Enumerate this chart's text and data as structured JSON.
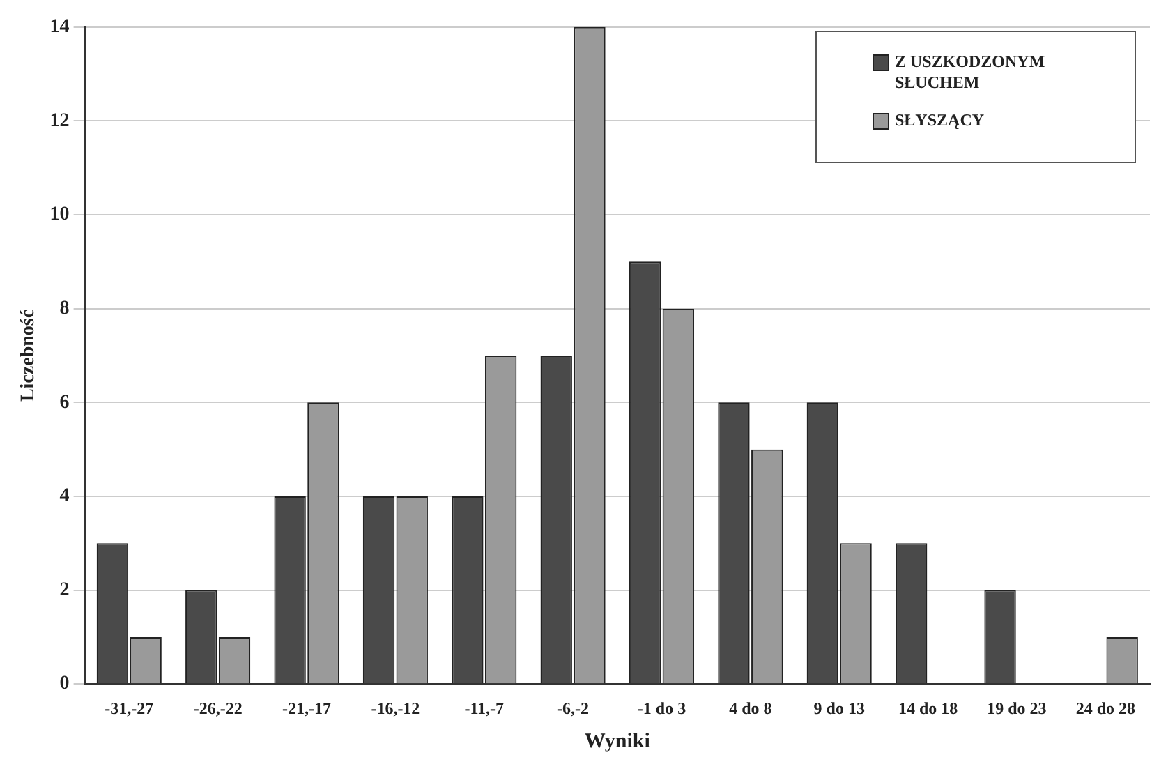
{
  "chart_data": {
    "type": "bar",
    "xlabel": "Wyniki",
    "ylabel": "Liczebność",
    "categories": [
      "-31,-27",
      "-26,-22",
      "-21,-17",
      "-16,-12",
      "-11,-7",
      "-6,-2",
      "-1 do 3",
      "4 do 8",
      "9 do 13",
      "14 do 18",
      "19 do 23",
      "24 do 28"
    ],
    "series": [
      {
        "name": "Z USZKODZONYM SŁUCHEM",
        "color": "#4a4a4a",
        "values": [
          3,
          2,
          4,
          4,
          4,
          7,
          9,
          6,
          6,
          3,
          2,
          0
        ]
      },
      {
        "name": "SŁYSZĄCY",
        "color": "#9a9a9a",
        "values": [
          1,
          1,
          6,
          4,
          7,
          14,
          8,
          5,
          3,
          0,
          0,
          1
        ]
      }
    ],
    "ylim": [
      0,
      14
    ],
    "yticks": [
      0,
      2,
      4,
      6,
      8,
      10,
      12,
      14
    ],
    "grid": "y",
    "legend": "top right"
  }
}
